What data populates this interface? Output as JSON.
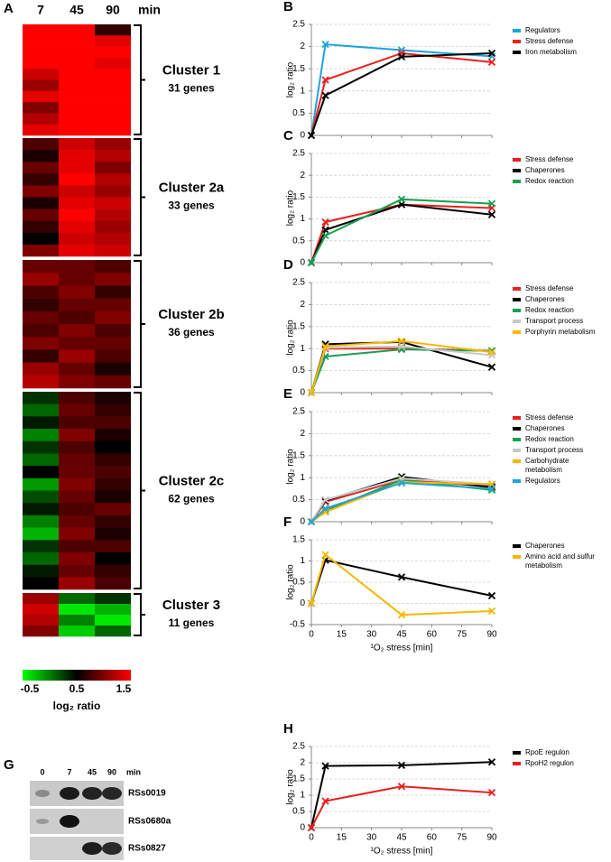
{
  "chart_data": [
    {
      "type": "heatmap",
      "panel": "A",
      "columns": [
        "7",
        "45",
        "90"
      ],
      "column_unit": "min",
      "clusters": [
        {
          "name": "Cluster 1",
          "genes": "31 genes",
          "rows": [
            [
              1.5,
              1.5,
              0.7
            ],
            [
              1.5,
              1.5,
              1.4
            ],
            [
              1.5,
              1.5,
              1.5
            ],
            [
              1.5,
              1.5,
              1.4
            ],
            [
              1.3,
              1.5,
              1.5
            ],
            [
              1.1,
              1.5,
              1.5
            ],
            [
              1.4,
              1.5,
              1.5
            ],
            [
              1.0,
              1.5,
              1.5
            ],
            [
              1.2,
              1.5,
              1.5
            ],
            [
              1.4,
              1.5,
              1.5
            ]
          ]
        },
        {
          "name": "Cluster 2a",
          "genes": "33 genes",
          "rows": [
            [
              0.8,
              1.3,
              1.1
            ],
            [
              0.6,
              1.4,
              1.2
            ],
            [
              0.9,
              1.4,
              1.0
            ],
            [
              0.7,
              1.5,
              1.2
            ],
            [
              1.0,
              1.3,
              1.1
            ],
            [
              0.6,
              1.4,
              1.3
            ],
            [
              0.9,
              1.5,
              1.2
            ],
            [
              0.7,
              1.4,
              1.1
            ],
            [
              0.5,
              1.3,
              1.2
            ],
            [
              1.0,
              1.4,
              1.3
            ]
          ]
        },
        {
          "name": "Cluster 2b",
          "genes": "36 genes",
          "rows": [
            [
              0.9,
              0.9,
              0.8
            ],
            [
              1.1,
              0.9,
              1.0
            ],
            [
              0.8,
              1.0,
              0.7
            ],
            [
              0.7,
              0.9,
              0.9
            ],
            [
              0.9,
              0.8,
              1.0
            ],
            [
              0.8,
              1.0,
              0.8
            ],
            [
              1.0,
              0.9,
              0.9
            ],
            [
              0.7,
              1.1,
              0.8
            ],
            [
              1.1,
              0.9,
              0.6
            ],
            [
              1.2,
              1.0,
              0.9
            ]
          ]
        },
        {
          "name": "Cluster 2c",
          "genes": "62 genes",
          "rows": [
            [
              0.3,
              0.8,
              0.6
            ],
            [
              0.1,
              0.9,
              0.7
            ],
            [
              0.4,
              0.8,
              0.8
            ],
            [
              0.0,
              1.0,
              0.6
            ],
            [
              0.3,
              0.8,
              0.5
            ],
            [
              0.1,
              0.9,
              0.7
            ],
            [
              0.5,
              0.9,
              0.8
            ],
            [
              -0.1,
              1.0,
              0.7
            ],
            [
              0.2,
              0.9,
              0.6
            ],
            [
              0.4,
              0.8,
              0.9
            ],
            [
              0.0,
              0.9,
              0.7
            ],
            [
              -0.2,
              1.0,
              0.6
            ],
            [
              0.3,
              0.8,
              0.8
            ],
            [
              0.1,
              1.0,
              0.5
            ],
            [
              0.4,
              0.9,
              0.7
            ],
            [
              0.5,
              1.1,
              0.8
            ]
          ]
        },
        {
          "name": "Cluster 3",
          "genes": "11 genes",
          "rows": [
            [
              1.1,
              0.1,
              0.3
            ],
            [
              1.3,
              -0.4,
              -0.2
            ],
            [
              1.2,
              0.0,
              -0.4
            ],
            [
              1.0,
              -0.3,
              0.1
            ]
          ]
        }
      ],
      "colorbar": {
        "vlim": [
          -0.5,
          1.5
        ],
        "ticks": [
          -0.5,
          0.5,
          1.5
        ],
        "label": "log₂ ratio",
        "colors": [
          "#00ff00",
          "#000000",
          "#ff0000"
        ]
      }
    },
    {
      "type": "line",
      "panel": "B",
      "ylabel": "log₂ ratio",
      "x": [
        0,
        7,
        45,
        90
      ],
      "xlim": [
        0,
        90
      ],
      "xticks": [
        0,
        15,
        30,
        45,
        60,
        75,
        90
      ],
      "ylim": [
        0,
        2.5
      ],
      "yticks": [
        0,
        0.5,
        1,
        1.5,
        2,
        2.5
      ],
      "grid": true,
      "series": [
        {
          "name": "Regulators",
          "color": "#1da5dc",
          "values": [
            0,
            2.05,
            1.92,
            1.78
          ]
        },
        {
          "name": "Stress defense",
          "color": "#e8211f",
          "values": [
            0,
            1.25,
            1.85,
            1.65
          ]
        },
        {
          "name": "Iron metabolism",
          "color": "#000000",
          "values": [
            0,
            0.9,
            1.77,
            1.85
          ]
        }
      ]
    },
    {
      "type": "line",
      "panel": "C",
      "ylabel": "log₂ ratio",
      "x": [
        0,
        7,
        45,
        90
      ],
      "xlim": [
        0,
        90
      ],
      "xticks": [
        0,
        15,
        30,
        45,
        60,
        75,
        90
      ],
      "ylim": [
        0,
        2.5
      ],
      "yticks": [
        0,
        0.5,
        1,
        1.5,
        2,
        2.5
      ],
      "grid": true,
      "series": [
        {
          "name": "Stress defense",
          "color": "#e8211f",
          "values": [
            0,
            0.93,
            1.33,
            1.25
          ]
        },
        {
          "name": "Chaperones",
          "color": "#000000",
          "values": [
            0,
            0.75,
            1.33,
            1.1
          ]
        },
        {
          "name": "Redox reaction",
          "color": "#18a050",
          "values": [
            0,
            0.62,
            1.45,
            1.35
          ]
        }
      ]
    },
    {
      "type": "line",
      "panel": "D",
      "ylabel": "log₂ ratio",
      "x": [
        0,
        7,
        45,
        90
      ],
      "xlim": [
        0,
        90
      ],
      "xticks": [
        0,
        15,
        30,
        45,
        60,
        75,
        90
      ],
      "ylim": [
        0,
        2.5
      ],
      "yticks": [
        0,
        0.5,
        1,
        1.5,
        2,
        2.5
      ],
      "grid": true,
      "series": [
        {
          "name": "Stress defense",
          "color": "#e8211f",
          "values": [
            0,
            1.0,
            1.0,
            0.95
          ]
        },
        {
          "name": "Chaperones",
          "color": "#000000",
          "values": [
            0,
            1.1,
            1.15,
            0.58
          ]
        },
        {
          "name": "Redox reaction",
          "color": "#18a050",
          "values": [
            0,
            0.82,
            0.98,
            0.95
          ]
        },
        {
          "name": "Transport process",
          "color": "#c8c8c8",
          "values": [
            0,
            1.02,
            1.05,
            0.85
          ]
        },
        {
          "name": "Porphyrin metabolism",
          "color": "#f5b800",
          "values": [
            0,
            1.05,
            1.17,
            0.92
          ]
        }
      ]
    },
    {
      "type": "line",
      "panel": "E",
      "ylabel": "log₂ ratio",
      "x": [
        0,
        7,
        45,
        90
      ],
      "xlim": [
        0,
        90
      ],
      "xticks": [
        0,
        15,
        30,
        45,
        60,
        75,
        90
      ],
      "ylim": [
        0,
        2.5
      ],
      "yticks": [
        0,
        0.5,
        1,
        1.5,
        2,
        2.5
      ],
      "grid": true,
      "series": [
        {
          "name": "Stress defense",
          "color": "#e8211f",
          "values": [
            0,
            0.45,
            0.95,
            0.8
          ]
        },
        {
          "name": "Chaperones",
          "color": "#000000",
          "values": [
            0,
            0.48,
            1.02,
            0.78
          ]
        },
        {
          "name": "Redox reaction",
          "color": "#18a050",
          "values": [
            0,
            0.25,
            0.95,
            0.72
          ]
        },
        {
          "name": "Transport process",
          "color": "#c8c8c8",
          "values": [
            0,
            0.5,
            0.98,
            0.85
          ]
        },
        {
          "name": "Carbohydrate metabolism",
          "color": "#f5b800",
          "values": [
            0,
            0.22,
            0.9,
            0.85
          ]
        },
        {
          "name": "Regulators",
          "color": "#1da5dc",
          "values": [
            0,
            0.3,
            0.88,
            0.75
          ]
        }
      ]
    },
    {
      "type": "line",
      "panel": "F",
      "ylabel": "log₂ ratio",
      "xlabel": "¹O₂ stress [min]",
      "xtick_labels": true,
      "x": [
        0,
        7,
        45,
        90
      ],
      "xlim": [
        0,
        90
      ],
      "xticks": [
        0,
        15,
        30,
        45,
        60,
        75,
        90
      ],
      "ylim": [
        -0.5,
        1.5
      ],
      "yticks": [
        -0.5,
        0,
        0.5,
        1,
        1.5
      ],
      "grid": true,
      "series": [
        {
          "name": "Chaperones",
          "color": "#000000",
          "values": [
            0,
            1.02,
            0.62,
            0.18
          ]
        },
        {
          "name": "Amino acid and sulfur metabolism",
          "color": "#f5b800",
          "values": [
            0,
            1.15,
            -0.27,
            -0.18
          ]
        }
      ]
    },
    {
      "type": "line",
      "panel": "H",
      "ylabel": "log₂ ratio",
      "xlabel": "¹O₂ stress [min]",
      "xtick_labels": true,
      "x": [
        0,
        7,
        45,
        90
      ],
      "xlim": [
        0,
        90
      ],
      "xticks": [
        0,
        15,
        30,
        45,
        60,
        75,
        90
      ],
      "ylim": [
        0,
        2.5
      ],
      "yticks": [
        0,
        0.5,
        1,
        1.5,
        2,
        2.5
      ],
      "grid": true,
      "series": [
        {
          "name": "RpoE regulon",
          "color": "#000000",
          "values": [
            0,
            1.9,
            1.92,
            2.02
          ]
        },
        {
          "name": "RpoH2 regulon",
          "color": "#e8211f",
          "values": [
            0,
            0.82,
            1.27,
            1.08
          ]
        }
      ]
    }
  ],
  "blot": {
    "panel": "G",
    "lanes": [
      "0",
      "7",
      "45",
      "90"
    ],
    "unit": "min",
    "genes": [
      "RSs0019",
      "RSs0680a",
      "RSs0827"
    ]
  }
}
